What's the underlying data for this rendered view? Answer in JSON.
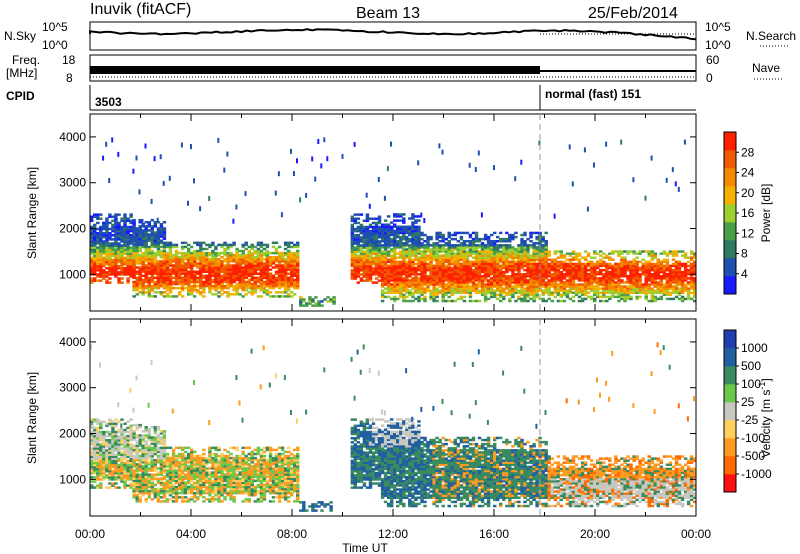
{
  "header": {
    "station": "Inuvik (fitACF)",
    "beam": "Beam 13",
    "date": "25/Feb/2014"
  },
  "panels": {
    "nsky": {
      "label": "N.Sky",
      "tick_top": "10^5",
      "tick_bottom": "10^0",
      "right_label": "N.Search",
      "right_tick_top": "10^5",
      "right_tick_bottom": "10^0"
    },
    "freq": {
      "label_line1": "Freq.",
      "label_line2": "[MHz]",
      "tick_top": "18",
      "tick_bottom": "8",
      "right_label": "Nave",
      "right_tick_top": "60",
      "right_tick_bottom": "0"
    },
    "cpid": {
      "label": "CPID",
      "first": "3503",
      "second": "normal (fast) 151"
    }
  },
  "colors": {
    "power": [
      "#1a1aff",
      "#1f4fb0",
      "#2f7a60",
      "#4a9f4a",
      "#9ccf2f",
      "#f5b000",
      "#f58a00",
      "#f05a00",
      "#ff2000"
    ],
    "velocity_pos": [
      "#1f3fb0",
      "#2060a0",
      "#3a8a60",
      "#6bc84a"
    ],
    "velocity_ground": "#c8c8c0",
    "velocity_neg": [
      "#ffcf60",
      "#ff9a20",
      "#ff6a00",
      "#ff1010"
    ]
  },
  "chart_data": [
    {
      "type": "heatmap",
      "title": "",
      "xlabel": "Time UT",
      "ylabel": "Slant Range [km]",
      "x_ticks": [
        "00:00",
        "04:00",
        "08:00",
        "12:00",
        "16:00",
        "20:00",
        "00:00"
      ],
      "y_ticks": [
        "1000",
        "2000",
        "3000",
        "4000"
      ],
      "ylim": [
        200,
        4500
      ],
      "xlim_hours": [
        0,
        24
      ],
      "colorbar": {
        "label": "Power [dB]",
        "ticks": [
          "4",
          "8",
          "12",
          "16",
          "20",
          "24",
          "28"
        ],
        "range": [
          0,
          30
        ]
      },
      "grid": false
    },
    {
      "type": "heatmap",
      "title": "",
      "xlabel": "Time UT",
      "ylabel": "Slant Range [km]",
      "x_ticks": [
        "00:00",
        "04:00",
        "08:00",
        "12:00",
        "16:00",
        "20:00",
        "00:00"
      ],
      "y_ticks": [
        "1000",
        "2000",
        "3000",
        "4000"
      ],
      "ylim": [
        200,
        4500
      ],
      "xlim_hours": [
        0,
        24
      ],
      "colorbar": {
        "label": "Velocity [m s-1]",
        "label_main": "Velocity",
        "label_unit": "[m s",
        "label_sup": "-1",
        "label_close": "]",
        "ticks": [
          "1000",
          "500",
          "100",
          "25",
          "-25",
          "-100",
          "-500",
          "-1000"
        ]
      },
      "grid": false
    }
  ]
}
